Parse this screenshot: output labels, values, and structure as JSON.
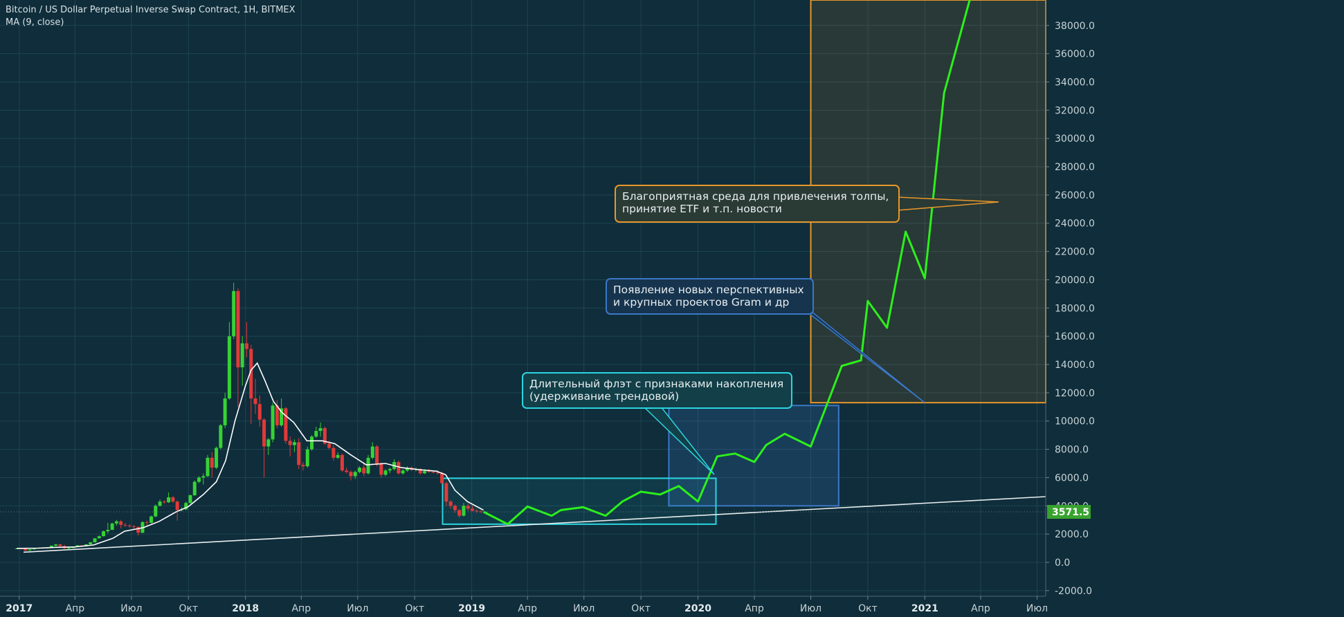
{
  "header": {
    "symbol_title": "Bitcoin / US Dollar Perpetual Inverse Swap Contract, 1H, BITMEX",
    "indicator_title": "MA (9, close)"
  },
  "colors": {
    "background": "#0f2d3a",
    "grid": "#1f4553",
    "up_candle": "#35d335",
    "down_candle": "#e23a3a",
    "ma_line": "#ffffff",
    "projection": "#2cf01b",
    "price_badge": "#38a32e",
    "orange": "#e7982b",
    "blue": "#3b78c8",
    "cyan": "#2bd5e0"
  },
  "current_price": "3571.5",
  "annotations": {
    "orange_callout": [
      "Благоприятная среда для привлечения толпы,",
      "принятие ETF и т.п. новости"
    ],
    "blue_callout": [
      "Появление новых перспективных",
      "и крупных проектов Gram и др"
    ],
    "cyan_callout": [
      "Длительный флэт с признаками накопления",
      "(удерживание трендовой)"
    ]
  },
  "chart_data": {
    "type": "candlestick",
    "x_axis": {
      "type": "date",
      "range": [
        "2016-12-01",
        "2021-07-15"
      ],
      "ticks": [
        {
          "date": "2017-01-01",
          "label": "2017",
          "bold": true
        },
        {
          "date": "2017-04-01",
          "label": "Апр"
        },
        {
          "date": "2017-07-01",
          "label": "Июл"
        },
        {
          "date": "2017-10-01",
          "label": "Окт"
        },
        {
          "date": "2018-01-01",
          "label": "2018",
          "bold": true
        },
        {
          "date": "2018-04-01",
          "label": "Апр"
        },
        {
          "date": "2018-07-01",
          "label": "Июл"
        },
        {
          "date": "2018-10-01",
          "label": "Окт"
        },
        {
          "date": "2019-01-01",
          "label": "2019",
          "bold": true
        },
        {
          "date": "2019-04-01",
          "label": "Апр"
        },
        {
          "date": "2019-07-01",
          "label": "Июл"
        },
        {
          "date": "2019-10-01",
          "label": "Окт"
        },
        {
          "date": "2020-01-01",
          "label": "2020",
          "bold": true
        },
        {
          "date": "2020-04-01",
          "label": "Апр"
        },
        {
          "date": "2020-07-01",
          "label": "Июл"
        },
        {
          "date": "2020-10-01",
          "label": "Окт"
        },
        {
          "date": "2021-01-01",
          "label": "2021",
          "bold": true
        },
        {
          "date": "2021-04-01",
          "label": "Апр"
        },
        {
          "date": "2021-07-01",
          "label": "Июл"
        }
      ]
    },
    "y_axis": {
      "range": [
        -2400,
        39800
      ],
      "ticks": [
        {
          "value": 38000,
          "label": "38000.0"
        },
        {
          "value": 36000,
          "label": "36000.0"
        },
        {
          "value": 34000,
          "label": "34000.0"
        },
        {
          "value": 32000,
          "label": "32000.0"
        },
        {
          "value": 30000,
          "label": "30000.0"
        },
        {
          "value": 28000,
          "label": "28000.0"
        },
        {
          "value": 26000,
          "label": "26000.0"
        },
        {
          "value": 24000,
          "label": "24000.0"
        },
        {
          "value": 22000,
          "label": "22000.0"
        },
        {
          "value": 20000,
          "label": "20000.0"
        },
        {
          "value": 18000,
          "label": "18000.0"
        },
        {
          "value": 16000,
          "label": "16000.0"
        },
        {
          "value": 14000,
          "label": "14000.0"
        },
        {
          "value": 12000,
          "label": "12000.0"
        },
        {
          "value": 10000,
          "label": "10000.0"
        },
        {
          "value": 8000,
          "label": "8000.0"
        },
        {
          "value": 6000,
          "label": "6000.0"
        },
        {
          "value": 4000,
          "label": "4000.0"
        },
        {
          "value": 2000,
          "label": "2000.0"
        },
        {
          "value": 0,
          "label": "0.0"
        },
        {
          "value": -2000,
          "label": "-2000.0"
        }
      ]
    },
    "candles": [
      [
        "2016-12-28",
        975,
        1000,
        960,
        985
      ],
      [
        "2017-01-04",
        985,
        1020,
        930,
        955
      ],
      [
        "2017-01-11",
        955,
        975,
        800,
        840
      ],
      [
        "2017-01-18",
        840,
        930,
        830,
        920
      ],
      [
        "2017-01-25",
        920,
        990,
        905,
        985
      ],
      [
        "2017-02-01",
        985,
        1050,
        970,
        1035
      ],
      [
        "2017-02-08",
        1035,
        1060,
        960,
        1000
      ],
      [
        "2017-02-15",
        1000,
        1070,
        990,
        1060
      ],
      [
        "2017-02-22",
        1060,
        1200,
        1050,
        1180
      ],
      [
        "2017-03-01",
        1180,
        1290,
        1150,
        1270
      ],
      [
        "2017-03-08",
        1270,
        1320,
        1100,
        1150
      ],
      [
        "2017-03-15",
        1150,
        1250,
        950,
        1000
      ],
      [
        "2017-03-22",
        1000,
        1050,
        900,
        1020
      ],
      [
        "2017-03-29",
        1020,
        1110,
        1000,
        1100
      ],
      [
        "2017-04-05",
        1100,
        1220,
        1090,
        1200
      ],
      [
        "2017-04-12",
        1200,
        1230,
        1150,
        1180
      ],
      [
        "2017-04-19",
        1180,
        1290,
        1170,
        1270
      ],
      [
        "2017-04-26",
        1270,
        1450,
        1260,
        1420
      ],
      [
        "2017-05-03",
        1420,
        1720,
        1400,
        1700
      ],
      [
        "2017-05-10",
        1700,
        1900,
        1680,
        1850
      ],
      [
        "2017-05-17",
        1850,
        2250,
        1830,
        2200
      ],
      [
        "2017-05-24",
        2200,
        2800,
        2050,
        2300
      ],
      [
        "2017-05-31",
        2300,
        2800,
        2280,
        2750
      ],
      [
        "2017-06-07",
        2750,
        3000,
        2600,
        2900
      ],
      [
        "2017-06-14",
        2900,
        3000,
        2400,
        2650
      ],
      [
        "2017-06-21",
        2650,
        2800,
        2500,
        2600
      ],
      [
        "2017-06-28",
        2600,
        2700,
        2450,
        2550
      ],
      [
        "2017-07-05",
        2550,
        2650,
        2350,
        2500
      ],
      [
        "2017-07-12",
        2500,
        2550,
        1900,
        2100
      ],
      [
        "2017-07-19",
        2100,
        2900,
        2050,
        2850
      ],
      [
        "2017-07-26",
        2850,
        2950,
        2550,
        2800
      ],
      [
        "2017-08-02",
        2800,
        3300,
        2750,
        3250
      ],
      [
        "2017-08-09",
        3250,
        4100,
        3200,
        4000
      ],
      [
        "2017-08-16",
        4000,
        4450,
        3950,
        4300
      ],
      [
        "2017-08-23",
        4300,
        4400,
        4150,
        4250
      ],
      [
        "2017-08-30",
        4250,
        4950,
        4200,
        4600
      ],
      [
        "2017-09-06",
        4600,
        4700,
        4200,
        4300
      ],
      [
        "2017-09-13",
        4300,
        4400,
        2950,
        3700
      ],
      [
        "2017-09-20",
        3700,
        3900,
        3600,
        3750
      ],
      [
        "2017-09-27",
        3750,
        4300,
        3700,
        4200
      ],
      [
        "2017-10-04",
        4200,
        4800,
        4150,
        4750
      ],
      [
        "2017-10-11",
        4750,
        5800,
        4700,
        5700
      ],
      [
        "2017-10-18",
        5700,
        6100,
        5600,
        6000
      ],
      [
        "2017-10-25",
        6000,
        6300,
        5500,
        6100
      ],
      [
        "2017-11-01",
        6100,
        7600,
        6050,
        7400
      ],
      [
        "2017-11-08",
        7400,
        7800,
        6000,
        6700
      ],
      [
        "2017-11-15",
        6700,
        8200,
        6600,
        8100
      ],
      [
        "2017-11-22",
        8100,
        9800,
        8000,
        9700
      ],
      [
        "2017-11-29",
        9700,
        12000,
        9500,
        11600
      ],
      [
        "2017-12-06",
        11600,
        17000,
        11500,
        16000
      ],
      [
        "2017-12-13",
        16000,
        19800,
        15800,
        19200
      ],
      [
        "2017-12-20",
        19200,
        19400,
        11000,
        13800
      ],
      [
        "2017-12-27",
        13800,
        16000,
        12500,
        15500
      ],
      [
        "2018-01-03",
        15500,
        17000,
        14500,
        15100
      ],
      [
        "2018-01-10",
        15100,
        15400,
        9800,
        11600
      ],
      [
        "2018-01-17",
        11600,
        13000,
        10500,
        11200
      ],
      [
        "2018-01-24",
        11200,
        11800,
        9600,
        10100
      ],
      [
        "2018-01-31",
        10100,
        10200,
        6000,
        8200
      ],
      [
        "2018-02-07",
        8200,
        8800,
        7600,
        8700
      ],
      [
        "2018-02-14",
        8700,
        11300,
        8500,
        11100
      ],
      [
        "2018-02-21",
        11100,
        11500,
        9500,
        9700
      ],
      [
        "2018-02-28",
        9700,
        11600,
        9600,
        10900
      ],
      [
        "2018-03-07",
        10900,
        11000,
        8400,
        8600
      ],
      [
        "2018-03-14",
        8600,
        8900,
        7500,
        8300
      ],
      [
        "2018-03-21",
        8300,
        8700,
        7800,
        8500
      ],
      [
        "2018-03-28",
        8500,
        8800,
        6600,
        6900
      ],
      [
        "2018-04-04",
        6900,
        7100,
        6500,
        6800
      ],
      [
        "2018-04-11",
        6800,
        8200,
        6700,
        8000
      ],
      [
        "2018-04-18",
        8000,
        9000,
        7900,
        8900
      ],
      [
        "2018-04-25",
        8900,
        9600,
        8800,
        9300
      ],
      [
        "2018-05-02",
        9300,
        9900,
        8900,
        9500
      ],
      [
        "2018-05-09",
        9500,
        9600,
        8300,
        8400
      ],
      [
        "2018-05-16",
        8400,
        8600,
        8000,
        8100
      ],
      [
        "2018-05-23",
        8100,
        8300,
        7200,
        7400
      ],
      [
        "2018-05-30",
        7400,
        7800,
        7300,
        7600
      ],
      [
        "2018-06-06",
        7600,
        7700,
        6400,
        6500
      ],
      [
        "2018-06-13",
        6500,
        6700,
        6300,
        6400
      ],
      [
        "2018-06-20",
        6400,
        6500,
        5800,
        6100
      ],
      [
        "2018-06-27",
        6100,
        6500,
        5900,
        6400
      ],
      [
        "2018-07-04",
        6400,
        6800,
        6300,
        6700
      ],
      [
        "2018-07-11",
        6700,
        7100,
        6100,
        6300
      ],
      [
        "2018-07-18",
        6300,
        7600,
        6200,
        7400
      ],
      [
        "2018-07-25",
        7400,
        8500,
        7300,
        8200
      ],
      [
        "2018-08-01",
        8200,
        8300,
        6800,
        7000
      ],
      [
        "2018-08-08",
        7000,
        7100,
        6000,
        6200
      ],
      [
        "2018-08-15",
        6200,
        6600,
        6100,
        6500
      ],
      [
        "2018-08-22",
        6500,
        6700,
        6300,
        6600
      ],
      [
        "2018-08-29",
        6600,
        7300,
        6500,
        7100
      ],
      [
        "2018-09-05",
        7100,
        7200,
        6200,
        6300
      ],
      [
        "2018-09-12",
        6300,
        6600,
        6200,
        6500
      ],
      [
        "2018-09-19",
        6500,
        6800,
        6400,
        6700
      ],
      [
        "2018-09-26",
        6700,
        6800,
        6450,
        6550
      ],
      [
        "2018-10-03",
        6550,
        6700,
        6450,
        6600
      ],
      [
        "2018-10-10",
        6600,
        6650,
        6200,
        6300
      ],
      [
        "2018-10-17",
        6300,
        6600,
        6250,
        6450
      ],
      [
        "2018-10-24",
        6450,
        6600,
        6350,
        6400
      ],
      [
        "2018-10-31",
        6400,
        6500,
        6300,
        6350
      ],
      [
        "2018-11-07",
        6350,
        6550,
        6200,
        6300
      ],
      [
        "2018-11-14",
        6300,
        6400,
        5500,
        5600
      ],
      [
        "2018-11-21",
        5600,
        5700,
        4000,
        4300
      ],
      [
        "2018-11-28",
        4300,
        4400,
        3800,
        4000
      ],
      [
        "2018-12-05",
        4000,
        4100,
        3500,
        3700
      ],
      [
        "2018-12-12",
        3700,
        3750,
        3150,
        3300
      ],
      [
        "2018-12-19",
        3300,
        4200,
        3250,
        4000
      ],
      [
        "2018-12-26",
        4000,
        4150,
        3650,
        3800
      ],
      [
        "2019-01-02",
        3800,
        4000,
        3600,
        3650
      ],
      [
        "2019-01-09",
        3650,
        3750,
        3500,
        3600
      ],
      [
        "2019-01-16",
        3600,
        3700,
        3500,
        3550
      ],
      [
        "2019-01-23",
        3550,
        3620,
        3500,
        3571.5
      ]
    ],
    "moving_average": {
      "name": "MA (9, close)",
      "points": [
        [
          "2016-12-28",
          990
        ],
        [
          "2017-02-01",
          1000
        ],
        [
          "2017-03-01",
          1060
        ],
        [
          "2017-04-01",
          1090
        ],
        [
          "2017-05-01",
          1230
        ],
        [
          "2017-06-01",
          1700
        ],
        [
          "2017-06-20",
          2200
        ],
        [
          "2017-07-20",
          2450
        ],
        [
          "2017-08-15",
          2900
        ],
        [
          "2017-09-10",
          3550
        ],
        [
          "2017-10-01",
          3950
        ],
        [
          "2017-10-25",
          4800
        ],
        [
          "2017-11-15",
          5700
        ],
        [
          "2017-11-30",
          7200
        ],
        [
          "2017-12-15",
          10000
        ],
        [
          "2018-01-01",
          12500
        ],
        [
          "2018-01-10",
          13600
        ],
        [
          "2018-01-20",
          14100
        ],
        [
          "2018-02-01",
          12900
        ],
        [
          "2018-02-15",
          11400
        ],
        [
          "2018-03-01",
          10600
        ],
        [
          "2018-03-20",
          9900
        ],
        [
          "2018-04-10",
          8600
        ],
        [
          "2018-05-05",
          8600
        ],
        [
          "2018-05-25",
          8400
        ],
        [
          "2018-06-20",
          7600
        ],
        [
          "2018-07-15",
          6900
        ],
        [
          "2018-08-15",
          7000
        ],
        [
          "2018-09-10",
          6700
        ],
        [
          "2018-10-10",
          6550
        ],
        [
          "2018-11-05",
          6450
        ],
        [
          "2018-11-20",
          6200
        ],
        [
          "2018-12-05",
          5100
        ],
        [
          "2018-12-25",
          4300
        ],
        [
          "2019-01-20",
          3700
        ]
      ]
    },
    "trendline": {
      "from": [
        "2017-01-08",
        720
      ],
      "to": [
        "2021-07-15",
        4650
      ]
    },
    "projection": {
      "points": [
        [
          "2019-01-20",
          3571.5
        ],
        [
          "2019-02-28",
          2700
        ],
        [
          "2019-04-01",
          3950
        ],
        [
          "2019-05-10",
          3300
        ],
        [
          "2019-05-25",
          3700
        ],
        [
          "2019-06-30",
          3900
        ],
        [
          "2019-08-05",
          3300
        ],
        [
          "2019-09-01",
          4300
        ],
        [
          "2019-10-01",
          5000
        ],
        [
          "2019-11-01",
          4800
        ],
        [
          "2019-12-01",
          5400
        ],
        [
          "2020-01-01",
          4300
        ],
        [
          "2020-02-01",
          7500
        ],
        [
          "2020-03-01",
          7700
        ],
        [
          "2020-04-01",
          7100
        ],
        [
          "2020-04-20",
          8300
        ],
        [
          "2020-05-20",
          9100
        ],
        [
          "2020-07-01",
          8200
        ],
        [
          "2020-08-20",
          13900
        ],
        [
          "2020-09-20",
          14300
        ],
        [
          "2020-10-01",
          18500
        ],
        [
          "2020-11-01",
          16600
        ],
        [
          "2020-12-01",
          23400
        ],
        [
          "2021-01-01",
          20100
        ],
        [
          "2021-02-01",
          33200
        ],
        [
          "2021-03-15",
          39900
        ]
      ]
    },
    "zones": [
      {
        "name": "orange",
        "from": "2020-07-01",
        "to": "2021-07-15",
        "y_low": 11300,
        "y_high": 39800
      },
      {
        "name": "blue",
        "from": "2019-11-15",
        "to": "2020-08-15",
        "y_low": 4000,
        "y_high": 11100
      },
      {
        "name": "cyan",
        "from": "2018-11-15",
        "to": "2020-01-30",
        "y_low": 2700,
        "y_high": 5950
      }
    ]
  }
}
